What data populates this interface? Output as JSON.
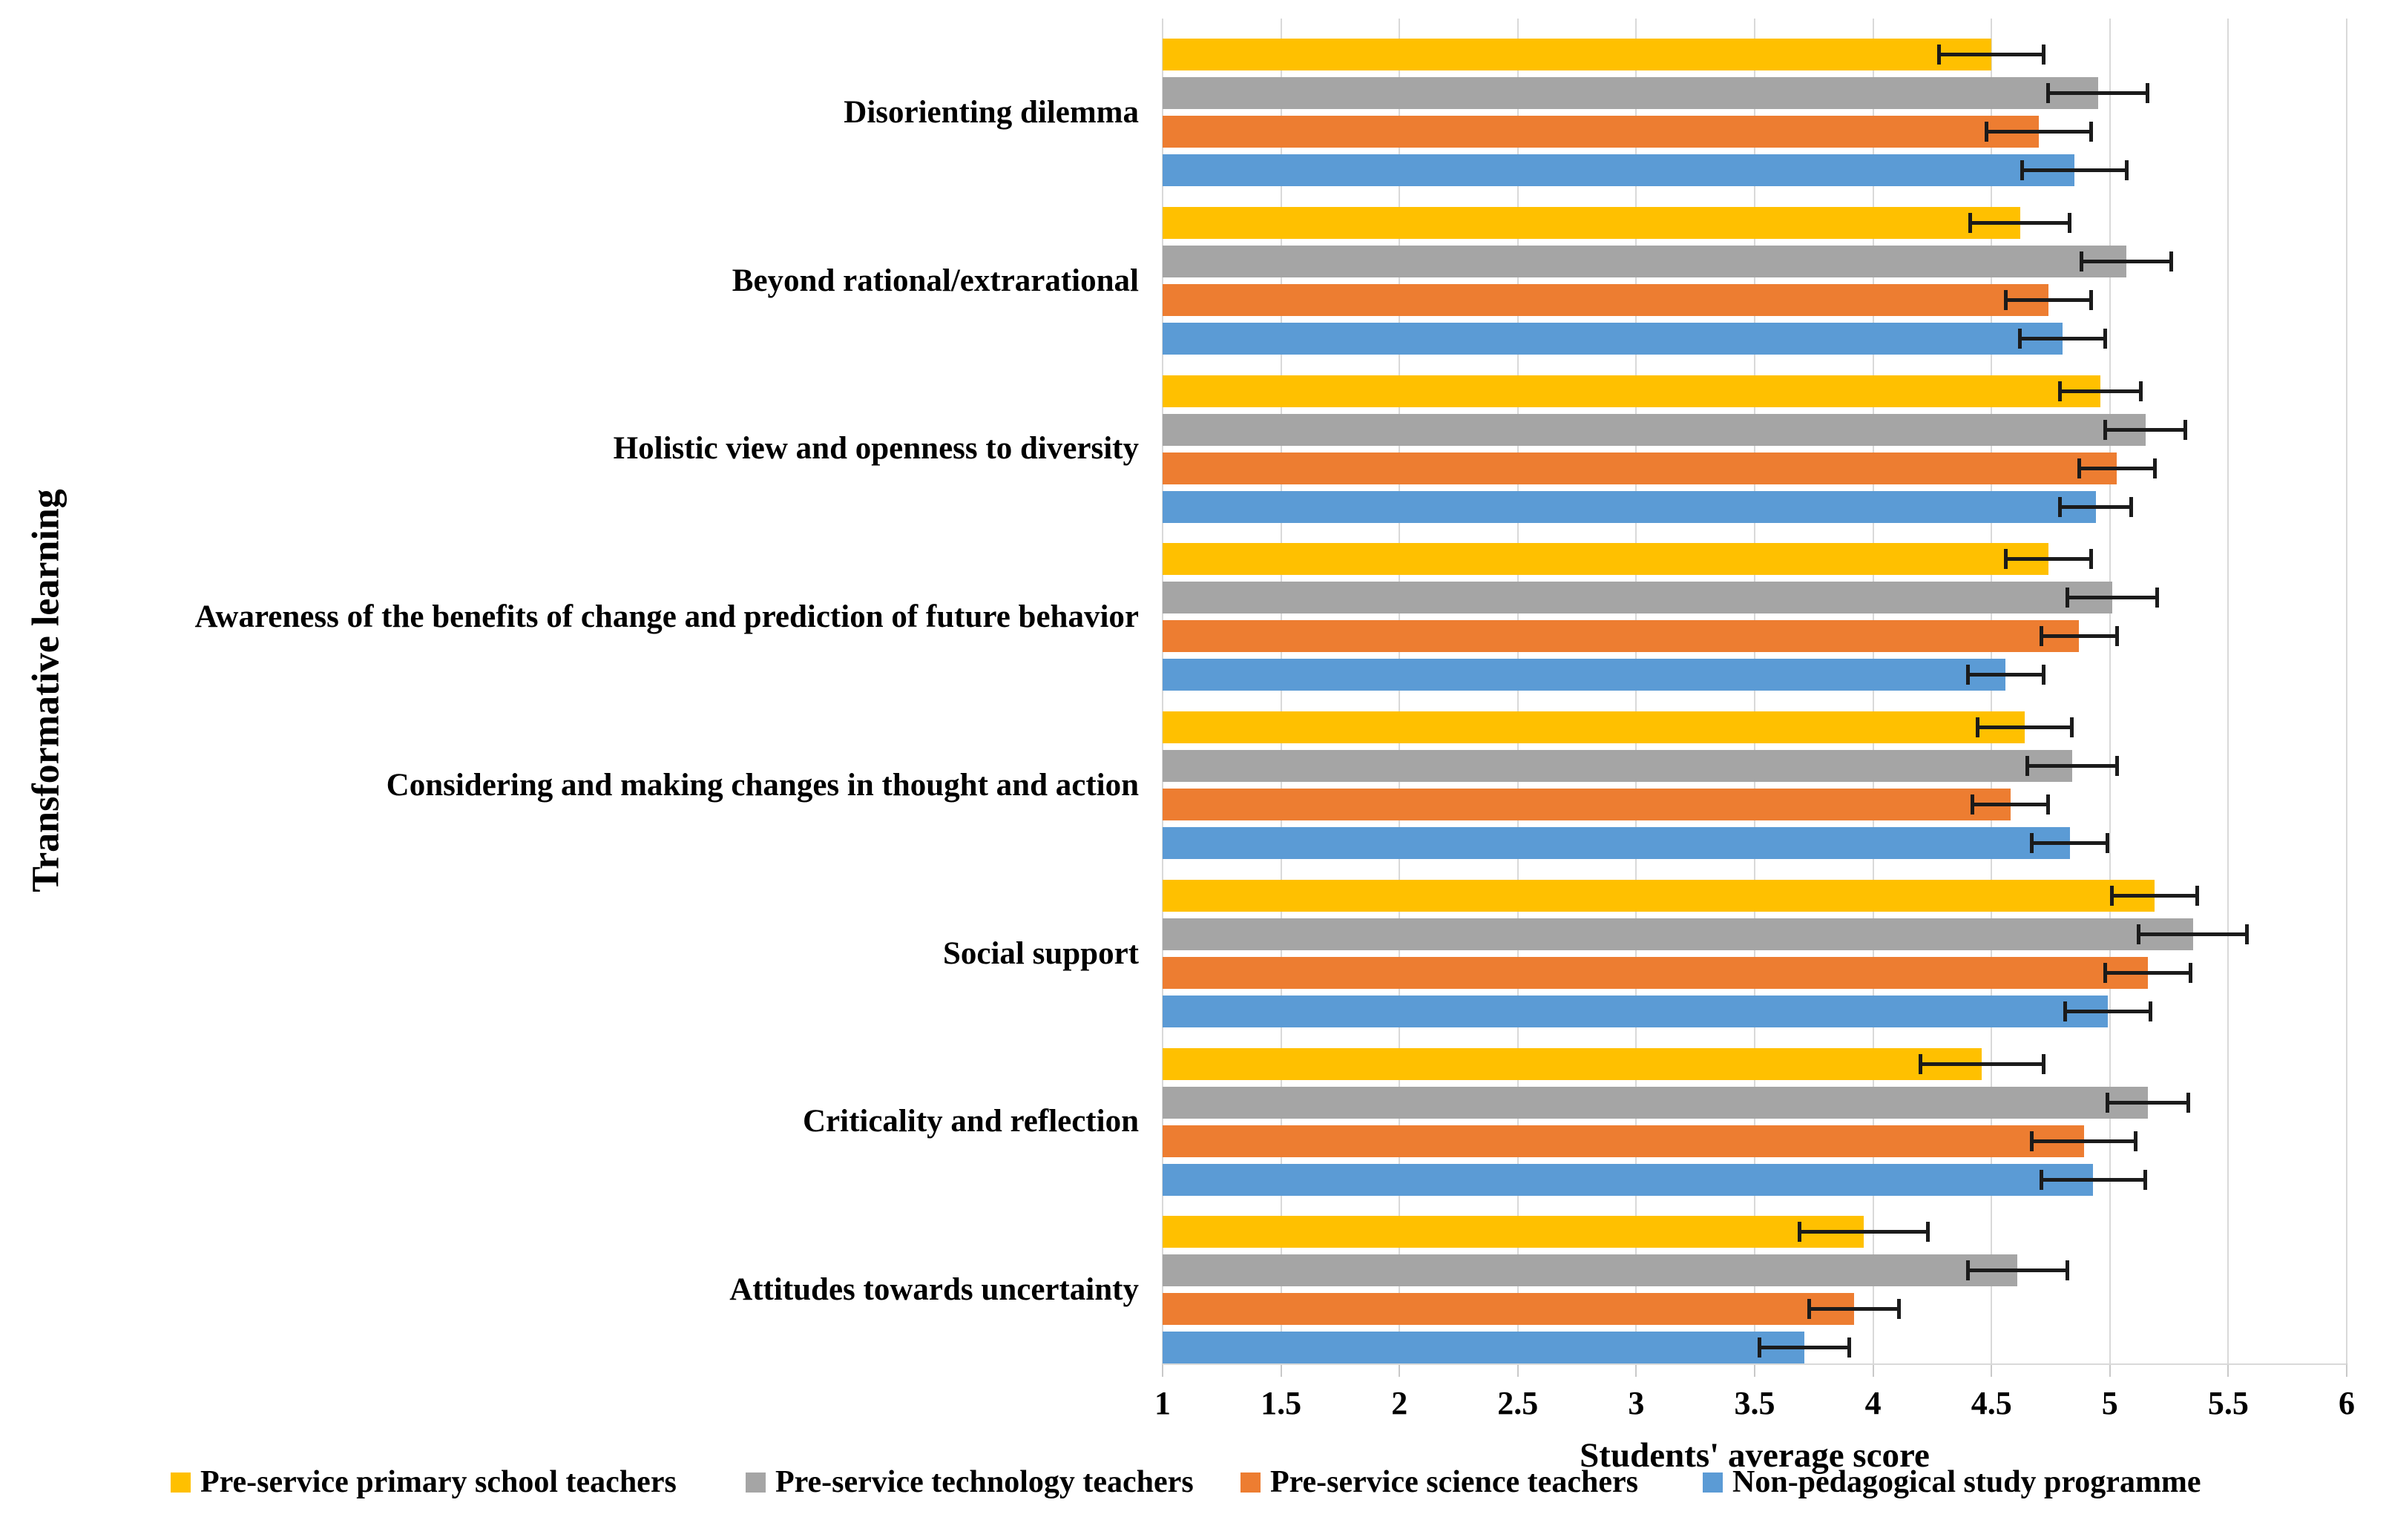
{
  "chart_data": {
    "type": "bar",
    "orientation": "horizontal",
    "xlabel": "Students' average score",
    "ylabel": "Transformative learning",
    "xlim": [
      1,
      6
    ],
    "xticks": [
      1,
      1.5,
      2,
      2.5,
      3,
      3.5,
      4,
      4.5,
      5,
      5.5,
      6
    ],
    "xtick_labels": [
      "1",
      "1.5",
      "2",
      "2.5",
      "3",
      "3.5",
      "4",
      "4.5",
      "5",
      "5.5",
      "6"
    ],
    "grid": true,
    "legend_position": "bottom",
    "error_bars": true,
    "categories": [
      "Disorienting dilemma",
      "Beyond rational/extrarational",
      "Holistic view and openness to diversity",
      "Awareness of the benefits of change and prediction of future behavior",
      "Considering and making changes in thought and action",
      "Social support",
      "Criticality and reflection",
      "Attitudes towards uncertainty"
    ],
    "series": [
      {
        "name": "Pre-service primary school teachers",
        "color": "#FFC000",
        "values": [
          4.5,
          4.62,
          4.96,
          4.74,
          4.64,
          5.19,
          4.46,
          3.96
        ],
        "errors": [
          0.22,
          0.21,
          0.17,
          0.18,
          0.2,
          0.18,
          0.26,
          0.27
        ]
      },
      {
        "name": "Pre-service technology teachers",
        "color": "#A5A5A5",
        "values": [
          4.95,
          5.07,
          5.15,
          5.01,
          4.84,
          5.35,
          5.16,
          4.61
        ],
        "errors": [
          0.21,
          0.19,
          0.17,
          0.19,
          0.19,
          0.23,
          0.17,
          0.21
        ]
      },
      {
        "name": "Pre-service science teachers",
        "color": "#ED7D31",
        "values": [
          4.7,
          4.74,
          5.03,
          4.87,
          4.58,
          5.16,
          4.89,
          3.92
        ],
        "errors": [
          0.22,
          0.18,
          0.16,
          0.16,
          0.16,
          0.18,
          0.22,
          0.19
        ]
      },
      {
        "name": "Non-pedagogical study programme",
        "color": "#5B9BD5",
        "values": [
          4.85,
          4.8,
          4.94,
          4.56,
          4.83,
          4.99,
          4.93,
          3.71
        ],
        "errors": [
          0.22,
          0.18,
          0.15,
          0.16,
          0.16,
          0.18,
          0.22,
          0.19
        ]
      }
    ]
  }
}
